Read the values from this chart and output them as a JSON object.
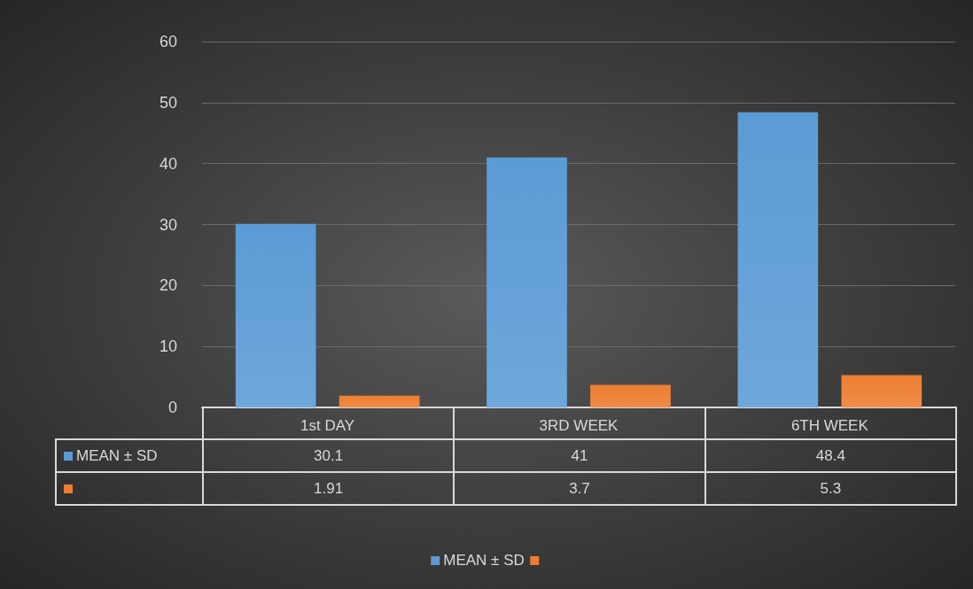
{
  "chart_data": {
    "type": "bar",
    "categories": [
      "1st DAY",
      "3RD WEEK",
      "6TH WEEK"
    ],
    "series": [
      {
        "name": "MEAN ± SD",
        "color": "#5b9bd5",
        "values": [
          30.1,
          41,
          48.4
        ]
      },
      {
        "color": "#ed7d31",
        "values": [
          1.91,
          3.7,
          5.3
        ]
      }
    ],
    "ylim": [
      0,
      60
    ],
    "yticks": [
      0,
      10,
      20,
      30,
      40,
      50,
      60
    ],
    "grid": "y",
    "legend": "bottom",
    "data_labels": true
  }
}
